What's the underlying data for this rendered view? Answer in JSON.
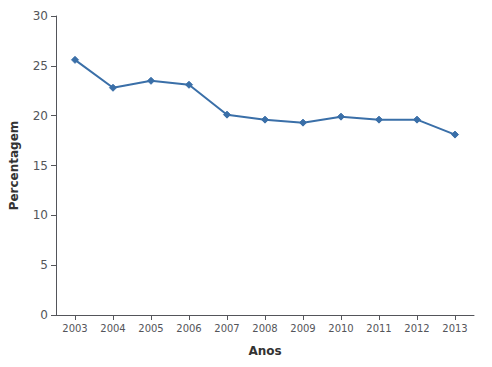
{
  "chart_data": {
    "type": "line",
    "xlabel": "Anos",
    "ylabel": "Percentagem",
    "x": [
      2003,
      2004,
      2005,
      2006,
      2007,
      2008,
      2009,
      2010,
      2011,
      2012,
      2013
    ],
    "values": [
      25.6,
      22.8,
      23.5,
      23.1,
      20.1,
      19.6,
      19.3,
      19.9,
      19.6,
      19.6,
      18.1
    ],
    "xlim": [
      2002.5,
      2013.5
    ],
    "xticks": [
      2003,
      2004,
      2005,
      2006,
      2007,
      2008,
      2009,
      2010,
      2011,
      2012,
      2013
    ],
    "ylim": [
      0,
      30
    ],
    "yticks": [
      0,
      5,
      10,
      15,
      20,
      25,
      30
    ],
    "color": "#3a6fa8",
    "marker": "diamond",
    "grid": false
  }
}
